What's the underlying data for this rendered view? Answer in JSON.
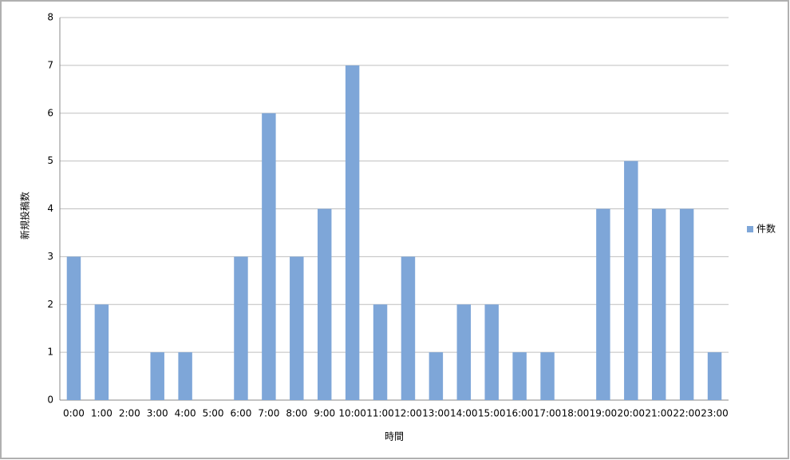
{
  "chart_data": {
    "type": "bar",
    "y_axis_label": "新規投稿数",
    "x_axis_label": "時間",
    "categories": [
      "0:00",
      "1:00",
      "2:00",
      "3:00",
      "4:00",
      "5:00",
      "6:00",
      "7:00",
      "8:00",
      "9:00",
      "10:00",
      "11:00",
      "12:00",
      "13:00",
      "14:00",
      "15:00",
      "16:00",
      "17:00",
      "18:00",
      "19:00",
      "20:00",
      "21:00",
      "22:00",
      "23:00"
    ],
    "series": [
      {
        "name": "件数",
        "color": "#7ea6d8",
        "values": [
          3,
          2,
          0,
          1,
          1,
          0,
          3,
          6,
          3,
          4,
          7,
          2,
          3,
          1,
          2,
          2,
          1,
          1,
          0,
          4,
          5,
          4,
          4,
          1
        ]
      }
    ],
    "ylim": [
      0,
      8
    ],
    "yticks": [
      0,
      1,
      2,
      3,
      4,
      5,
      6,
      7,
      8
    ],
    "grid": true,
    "legend": "right"
  }
}
